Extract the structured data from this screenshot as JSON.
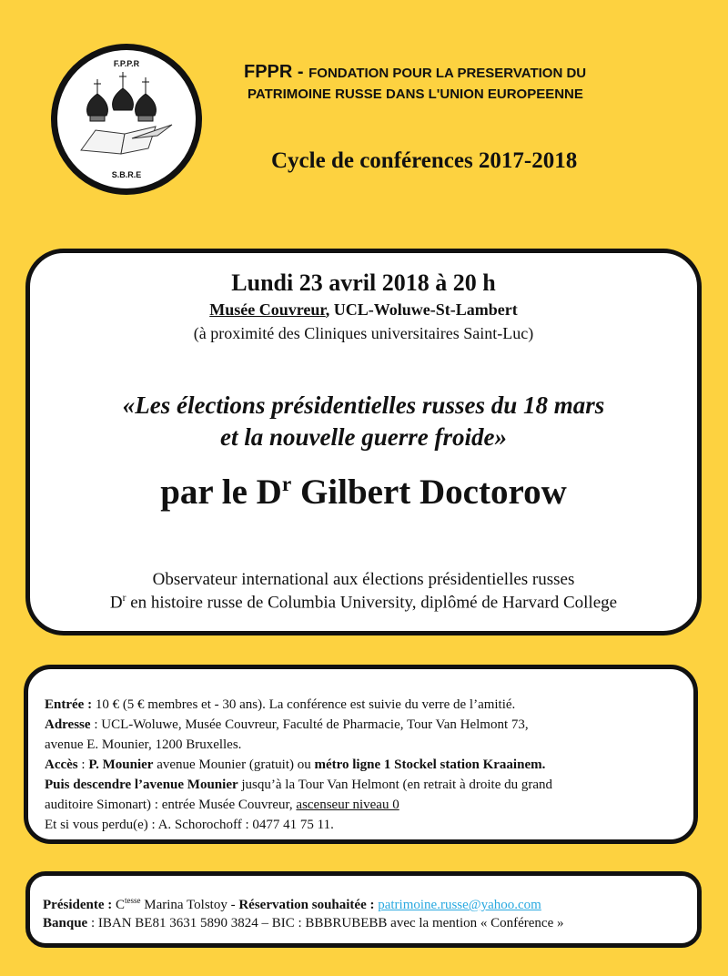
{
  "logo": {
    "top_text": "F.P.P.R",
    "bottom_text": "S.B.R.E"
  },
  "header": {
    "acronym": "FPPR - ",
    "line1": "FONDATION POUR LA PRESERVATION DU",
    "line2": "PATRIMOINE RUSSE DANS  L'UNION EUROPEENNE",
    "cycle": "Cycle  de conférences 2017-2018"
  },
  "event": {
    "date": "Lundi 23 avril 2018 à 20 h",
    "venue": "Musée Couvreur",
    "venue_rest": ", UCL-Woluwe-St-Lambert",
    "proximity": "(à proximité des Cliniques universitaires Saint-Luc)",
    "title_line1": "«Les élections présidentielles russes du 18 mars",
    "title_line2": "et la nouvelle guerre froide»",
    "speaker_pre": "par le D",
    "speaker_sup": "r",
    "speaker_name": " Gilbert Doctorow",
    "bio_line1": "Observateur international aux élections présidentielles russes",
    "bio_line2_pre": "D",
    "bio_line2_sup": "r",
    "bio_line2": " en histoire russe de Columbia University, diplômé de Harvard College"
  },
  "practical": {
    "entree_label": "Entrée :",
    "entree": " 10 € (5 € membres et - 30 ans). La conférence est suivie du verre de l’amitié.",
    "adresse_label": "Adresse",
    "adresse1": " : UCL-Woluwe, Musée Couvreur, Faculté de Pharmacie, Tour Van Helmont 73,",
    "adresse2": "avenue E. Mounier, 1200 Bruxelles.",
    "acces_label": "Accès",
    "acces_a": " : ",
    "acces_b": "P. Mounier",
    "acces_c": " avenue Mounier (gratuit) ou ",
    "acces_d": "métro ligne 1 Stockel station Kraainem.",
    "puis_b": "Puis descendre l’avenue Mounier",
    "puis_c": " jusqu’à la Tour Van Helmont (en retrait à droite du grand",
    "auditoire": "auditoire Simonart) : entrée Musée Couvreur, ",
    "ascenseur": "ascenseur niveau 0",
    "perdu": "Et si vous perdu(e) : A. Schorochoff : 0477 41 75 11."
  },
  "contact": {
    "presidente_label": "Présidente :",
    "c": " C",
    "c_sup": "tesse",
    "name": "  Marina Tolstoy - ",
    "reservation_label": "Réservation souhaitée :",
    "email": "patrimoine.russe@yahoo.com",
    "banque_label": "Banque",
    "banque": " : IBAN BE81 3631 5890 3824 – BIC : BBBRUBEBB avec la mention « Conférence »"
  },
  "colors": {
    "background": "#fdd240",
    "link": "#29a9e0"
  }
}
